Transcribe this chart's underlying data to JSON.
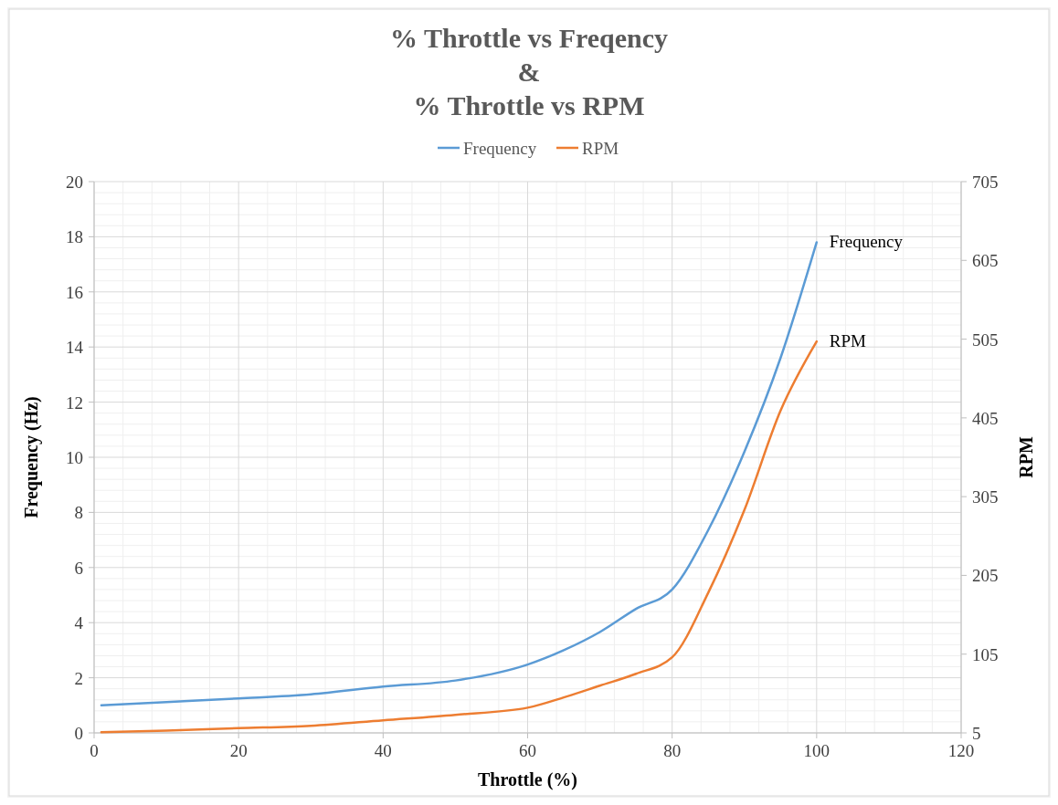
{
  "chart_data": {
    "type": "line",
    "title": "% Throttle vs Freqency\n&\n% Throttle vs RPM",
    "xlabel": "Throttle (%)",
    "ylabel": "Frequency (Hz)",
    "y2label": "RPM",
    "x": [
      1,
      10,
      20,
      30,
      40,
      50,
      60,
      65,
      70,
      75,
      80,
      85,
      90,
      95,
      100
    ],
    "series": [
      {
        "name": "Frequency",
        "color": "#5b9bd5",
        "values": [
          1.0,
          1.12,
          1.25,
          1.4,
          1.68,
          1.9,
          2.48,
          3.0,
          3.66,
          4.5,
          5.2,
          7.36,
          10.2,
          13.6,
          17.8
        ]
      },
      {
        "name": "RPM",
        "color": "#ed7d31",
        "axis": "y2",
        "values": [
          6,
          8,
          11,
          14,
          21,
          28,
          37,
          50,
          65,
          80,
          101,
          183,
          288,
          414,
          502
        ]
      }
    ],
    "xlim": [
      0,
      120
    ],
    "xticks": [
      0,
      20,
      40,
      60,
      80,
      100,
      120
    ],
    "ylim": [
      0,
      20
    ],
    "yticks": [
      0,
      2,
      4,
      6,
      8,
      10,
      12,
      14,
      16,
      18,
      20
    ],
    "y2lim": [
      5,
      705
    ],
    "y2ticks": [
      5,
      105,
      205,
      305,
      405,
      505,
      605,
      705
    ],
    "grid": true,
    "legend": "top",
    "marker": "none",
    "line_style": "solid"
  }
}
